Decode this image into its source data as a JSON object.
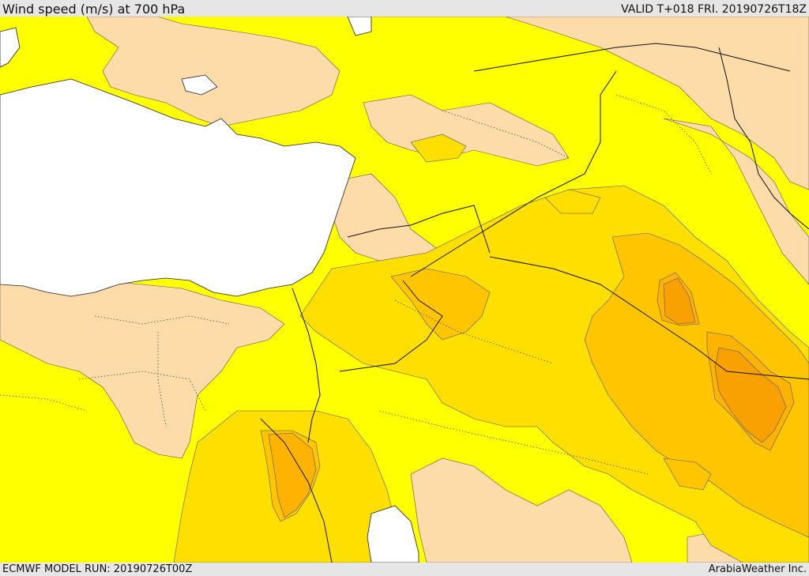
{
  "header": {
    "title": "Wind speed (m/s) at 700 hPa",
    "valid_time": "VALID T+018 FRI. 20190726T18Z"
  },
  "footer": {
    "model_run": "ECMWF MODEL RUN: 20190726T00Z",
    "credit": "ArabiaWeather Inc."
  },
  "map": {
    "colors": {
      "sea": "#ffffff",
      "band_low": "#fddcaa",
      "band_yellow": "#ffff00",
      "band_gold": "#ffdf00",
      "band_amber": "#ffc600",
      "band_orange": "#fdb300",
      "band_dark_orange": "#f9a100"
    }
  }
}
